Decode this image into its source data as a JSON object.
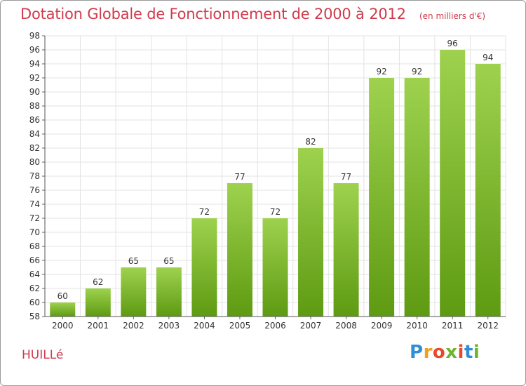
{
  "title": "Dotation Globale de Fonctionnement de 2000 à 2012",
  "unit_note": "(en milliers d'€)",
  "commune": "HUILLé",
  "brand": {
    "letters": [
      "P",
      "r",
      "o",
      "x",
      "i",
      "t",
      "i"
    ],
    "colors": [
      "#2f8fd6",
      "#f0a020",
      "#e8492c",
      "#6cb52c",
      "#e8492c",
      "#2f8fd6",
      "#6cb52c"
    ]
  },
  "colors": {
    "title": "#d13a4b",
    "bar_top": "#9ed24e",
    "bar_bottom": "#5e9a12",
    "grid": "#e3e3e3"
  },
  "chart_data": {
    "type": "bar",
    "categories": [
      "2000",
      "2001",
      "2002",
      "2003",
      "2004",
      "2005",
      "2006",
      "2007",
      "2008",
      "2009",
      "2010",
      "2011",
      "2012"
    ],
    "values": [
      60,
      62,
      65,
      65,
      72,
      77,
      72,
      82,
      77,
      92,
      92,
      96,
      94
    ],
    "ylim": [
      58,
      98
    ],
    "yticks": [
      58,
      60,
      62,
      64,
      66,
      68,
      70,
      72,
      74,
      76,
      78,
      80,
      82,
      84,
      86,
      88,
      90,
      92,
      94,
      96,
      98
    ],
    "grid": true,
    "legend": "none"
  }
}
